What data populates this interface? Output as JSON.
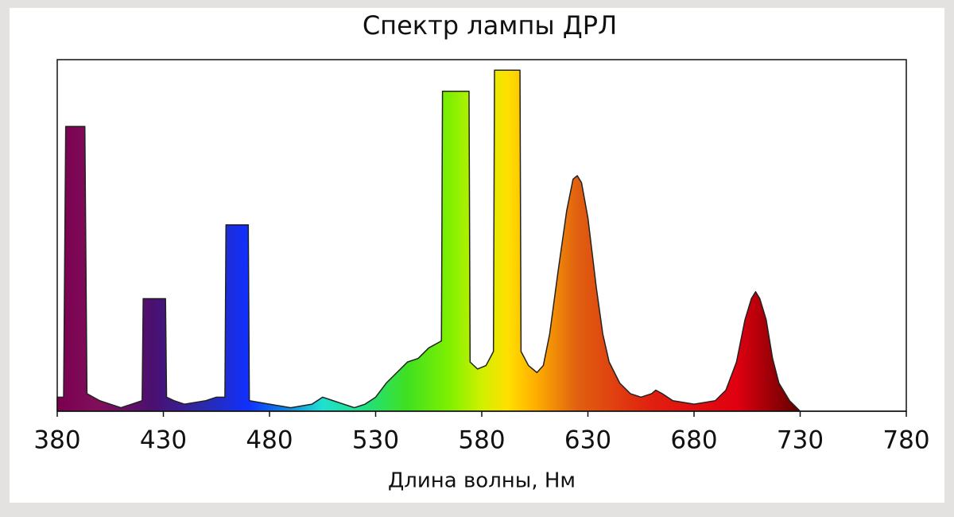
{
  "chart_data": {
    "type": "area",
    "title": "Спектр лампы ДРЛ",
    "x_label": "Длина волны, Нм",
    "x": [
      380,
      383,
      384,
      393,
      394,
      400,
      410,
      415,
      420,
      420.5,
      431,
      431.5,
      435,
      440,
      450,
      455,
      459,
      459.5,
      470,
      470.5,
      480,
      490,
      500,
      505,
      510,
      515,
      520,
      525,
      530,
      535,
      540,
      545,
      550,
      555,
      561,
      561.5,
      574,
      574.5,
      578,
      582,
      585.5,
      586,
      598,
      598.5,
      602,
      606,
      609,
      612,
      616,
      620,
      623,
      625,
      627,
      630,
      634,
      637,
      640,
      645,
      650,
      655,
      660,
      662,
      665,
      670,
      680,
      690,
      695,
      700,
      704,
      707,
      709,
      711,
      714,
      717,
      720,
      725,
      730,
      740,
      780
    ],
    "values": [
      4,
      4,
      81,
      81,
      5,
      3,
      1,
      2,
      3,
      32,
      32,
      4,
      3,
      2,
      3,
      4,
      4,
      53,
      53,
      3,
      2,
      1,
      2,
      4,
      3,
      2,
      1,
      2,
      4,
      8,
      11,
      14,
      15,
      18,
      20,
      91,
      91,
      14,
      12,
      13,
      17,
      97,
      97,
      17,
      13,
      11,
      13,
      22,
      40,
      57,
      66,
      67,
      65,
      55,
      35,
      22,
      14,
      8,
      5,
      4,
      5,
      6,
      5,
      3,
      2,
      3,
      6,
      14,
      26,
      32,
      34,
      32,
      26,
      15,
      8,
      3,
      0,
      0,
      0
    ],
    "xlim": [
      380,
      780
    ],
    "xticks": [
      380,
      430,
      480,
      530,
      580,
      630,
      680,
      730,
      780
    ],
    "ylim": [
      0,
      100
    ]
  }
}
